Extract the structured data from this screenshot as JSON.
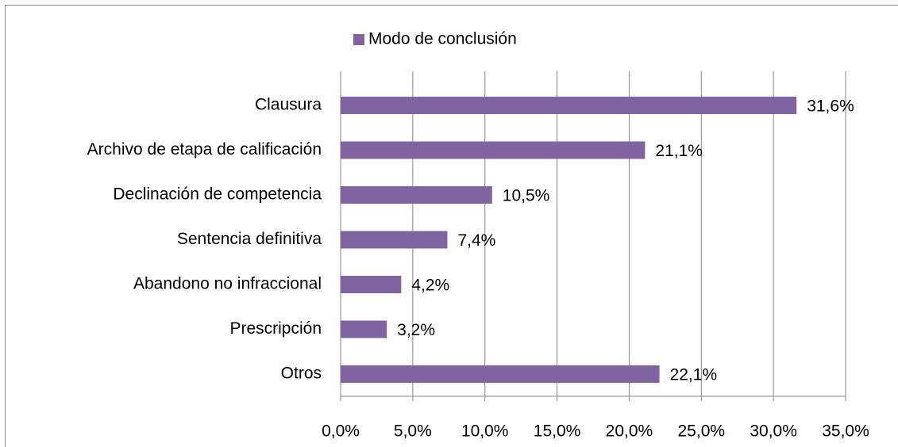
{
  "chart_data": {
    "type": "bar",
    "orientation": "horizontal",
    "categories": [
      "Clausura",
      "Archivo de etapa de calificación",
      "Declinación de competencia",
      "Sentencia definitiva",
      "Abandono no infraccional",
      "Prescripción",
      "Otros"
    ],
    "series": [
      {
        "name": "Modo de conclusión",
        "color": "#8064a2",
        "values": [
          31.6,
          21.1,
          10.5,
          7.4,
          4.2,
          3.2,
          22.1
        ],
        "value_labels": [
          "31,6%",
          "21,1%",
          "10,5%",
          "7,4%",
          "4,2%",
          "3,2%",
          "22,1%"
        ]
      }
    ],
    "xlim": [
      0,
      35
    ],
    "xticks": [
      {
        "value": 0,
        "label": "0,0%"
      },
      {
        "value": 5,
        "label": "5,0%"
      },
      {
        "value": 10,
        "label": "10,0%"
      },
      {
        "value": 15,
        "label": "15,0%"
      },
      {
        "value": 20,
        "label": "20,0%"
      },
      {
        "value": 25,
        "label": "25,0%"
      },
      {
        "value": 30,
        "label": "30,0%"
      },
      {
        "value": 35,
        "label": "35,0%"
      }
    ],
    "grid": true,
    "legend": "top"
  }
}
